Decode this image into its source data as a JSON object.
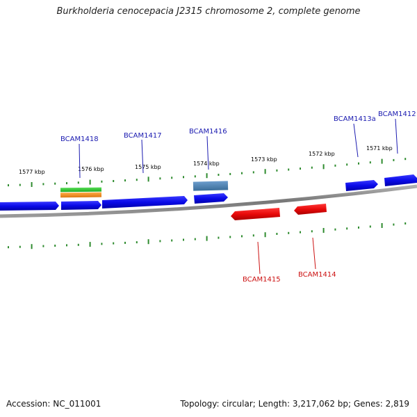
{
  "title": "Burkholderia cenocepacia J2315 chromosome 2, complete genome",
  "footer": {
    "accession": "Accession: NC_011001",
    "summary": "Topology: circular; Length: 3,217,062 bp; Genes: 2,819"
  },
  "colors": {
    "forward_gene": "#1010dd",
    "reverse_gene": "#dd1010",
    "forward_label": "#1a1ab0",
    "reverse_label": "#cc1111",
    "backbone": "#888888",
    "ticks": "#2e8b2e",
    "feature_green": "#33bb33",
    "feature_orange": "#ee8822",
    "feature_steel": "#4682b4"
  },
  "scale_labels": [
    "1577 kbp",
    "1576 kbp",
    "1575 kbp",
    "1574 kbp",
    "1573 kbp",
    "1572 kbp",
    "1571 kbp"
  ],
  "forward_genes": [
    {
      "name": "BCAM1418"
    },
    {
      "name": "BCAM1417"
    },
    {
      "name": "BCAM1416"
    },
    {
      "name": "BCAM1413a"
    },
    {
      "name": "BCAM1412"
    }
  ],
  "reverse_genes": [
    {
      "name": "BCAM1415"
    },
    {
      "name": "BCAM1414"
    }
  ]
}
